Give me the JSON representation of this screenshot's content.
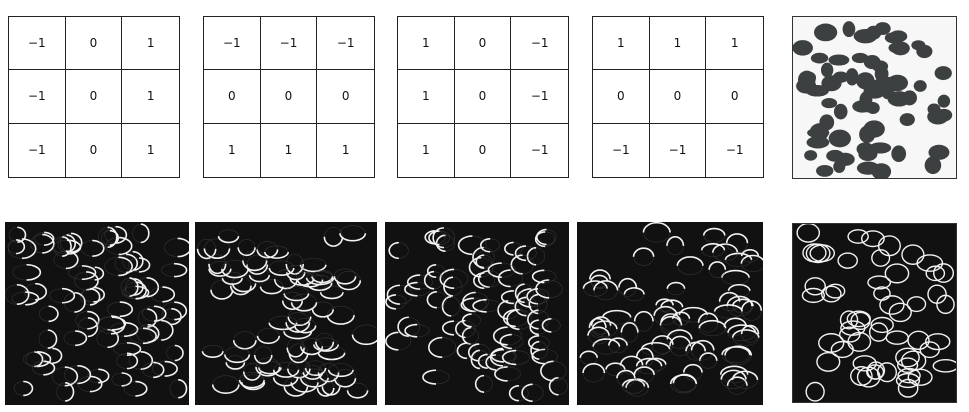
{
  "kernels": [
    {
      "name": "kernel-vertical-1",
      "values": [
        "−1",
        "0",
        "1",
        "−1",
        "0",
        "1",
        "−1",
        "0",
        "1"
      ]
    },
    {
      "name": "kernel-horizontal-1",
      "values": [
        "−1",
        "−1",
        "−1",
        "0",
        "0",
        "0",
        "1",
        "1",
        "1"
      ]
    },
    {
      "name": "kernel-vertical-2",
      "values": [
        "1",
        "0",
        "−1",
        "1",
        "0",
        "−1",
        "1",
        "0",
        "−1"
      ]
    },
    {
      "name": "kernel-horizontal-2",
      "values": [
        "1",
        "1",
        "1",
        "0",
        "0",
        "0",
        "−1",
        "−1",
        "−1"
      ]
    }
  ],
  "colors": {
    "blob": "#3c4040",
    "edge": "#f2f2f2",
    "panel_bg": "#111111",
    "photo_bg": "#f7f7f7"
  }
}
